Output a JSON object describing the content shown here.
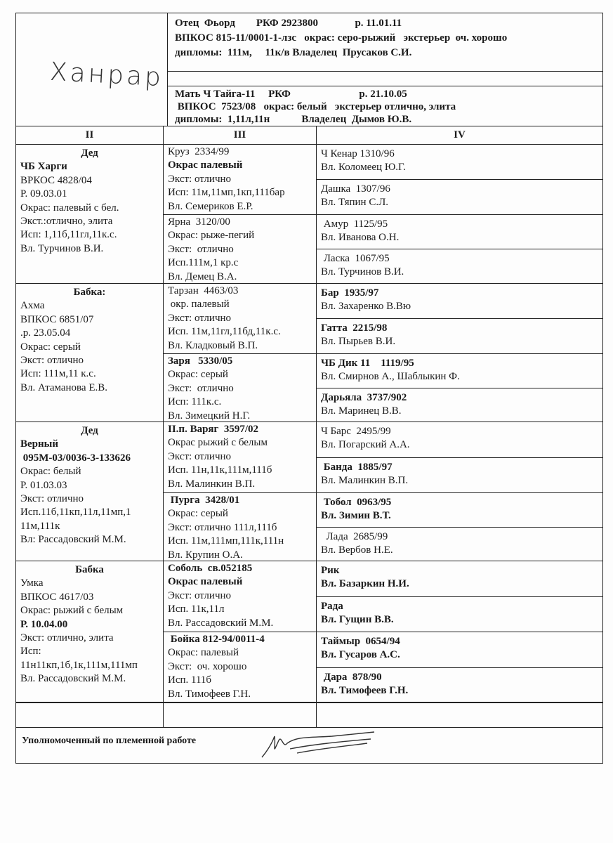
{
  "handwritten_name": "Ханрар",
  "father": {
    "lines": [
      "Отец  Фьорд        РКФ 2923800              р. 11.01.11",
      "ВПКОС 815-11/0001-1-лзс   окрас: серо-рыжий   экстерьер  оч. хорошо",
      "дипломы:  111м,     11к/в Владелец  Прусаков С.И."
    ]
  },
  "mother": {
    "lines": [
      "Мать Ч Тайга-11     РКФ                          р. 21.10.05",
      " ВПКОС  7523/08   окрас: белый   экстерьер отлично, элита",
      "дипломы:  1,11л,11н            Владелец  Дымов Ю.В."
    ]
  },
  "columns": [
    "II",
    "III",
    "IV"
  ],
  "col2": [
    [
      {
        "t": "Дед",
        "b": true,
        "c": true
      },
      {
        "t": "ЧБ Харги",
        "b": true
      },
      {
        "t": "ВРКОС 4828/04"
      },
      {
        "t": "Р. 09.03.01"
      },
      {
        "t": "Окрас: палевый с бел."
      },
      {
        "t": "Экст.:отлично, элита"
      },
      {
        "t": "Исп: 1,11б,11гл,11к.с."
      },
      {
        "t": "Вл. Турчинов В.И."
      }
    ],
    [
      {
        "t": ""
      },
      {
        "t": "Бабка:",
        "b": true,
        "c": true
      },
      {
        "t": "Ахма"
      },
      {
        "t": "ВПКОС 6851/07"
      },
      {
        "t": ".р. 23.05.04"
      },
      {
        "t": "Окрас: серый"
      },
      {
        "t": "Экст: отлично"
      },
      {
        "t": "Исп: 111м,11 к.с."
      },
      {
        "t": "Вл. Атаманова Е.В."
      }
    ],
    [
      {
        "t": "Дед",
        "b": true,
        "c": true
      },
      {
        "t": "Верный",
        "b": true
      },
      {
        "t": " 095М-03/0036-3-133626",
        "b": true
      },
      {
        "t": "Окрас: белый"
      },
      {
        "t": "Р. 01.03.03"
      },
      {
        "t": "Экст: отлично"
      },
      {
        "t": "Исп.11б,11кп,11л,11мп,1"
      },
      {
        "t": "11м,111к"
      },
      {
        "t": "Вл: Рассадовский М.М."
      }
    ],
    [
      {
        "t": ""
      },
      {
        "t": "Бабка",
        "b": true,
        "c": true
      },
      {
        "t": "Умка"
      },
      {
        "t": "ВПКОС 4617/03"
      },
      {
        "t": "Окрас: рыжий с белым"
      },
      {
        "t": "Р. 10.04.00",
        "b": true
      },
      {
        "t": "Экст: отлично, элита"
      },
      {
        "t": "Исп:"
      },
      {
        "t": "11н11кп,1б,1к,111м,111мп"
      },
      {
        "t": "Вл. Рассадовский М.М."
      }
    ]
  ],
  "col3": [
    [
      {
        "t": "Круз  2334/99"
      },
      {
        "t": "Окрас палевый",
        "b": true
      },
      {
        "t": "Экст: отлично"
      },
      {
        "t": "Исп: 11м,11мп,1кп,111бар"
      },
      {
        "t": "Вл. Семериков Е.Р."
      }
    ],
    [
      {
        "t": "Ярна  3120/00"
      },
      {
        "t": "Окрас: рыже-пегий"
      },
      {
        "t": "Экст:  отлично"
      },
      {
        "t": "Исп.111м,1 кр.с"
      },
      {
        "t": "Вл. Демец В.А."
      }
    ],
    [
      {
        "t": "Тарзан  4463/03"
      },
      {
        "t": " окр. палевый"
      },
      {
        "t": "Экст: отлично"
      },
      {
        "t": "Исп. 11м,11гл,11бд,11к.с."
      },
      {
        "t": "Вл. Кладковый В.П."
      }
    ],
    [
      {
        "t": "Заря   5330/05",
        "b": true
      },
      {
        "t": "Окрас: серый"
      },
      {
        "t": "Экст:  отлично"
      },
      {
        "t": "Исп: 111к.с."
      },
      {
        "t": "Вл. Зимецкий Н.Г."
      }
    ],
    [
      {
        "t": "II.п. Варяг  3597/02",
        "b": true
      },
      {
        "t": "Окрас рыжий с белым"
      },
      {
        "t": "Экст: отлично"
      },
      {
        "t": "Исп. 11н,11к,111м,111б"
      },
      {
        "t": "Вл. Малинкин В.П."
      }
    ],
    [
      {
        "t": " Пурга  3428/01",
        "b": true
      },
      {
        "t": "Окрас: серый"
      },
      {
        "t": "Экст: отлично 111л,111б"
      },
      {
        "t": "Исп. 11м,111мп,111к,111н"
      },
      {
        "t": "Вл. Крупин О.А."
      }
    ],
    [
      {
        "t": "Соболь  св.052185",
        "b": true
      },
      {
        "t": "Окрас палевый",
        "b": true
      },
      {
        "t": "Экст: отлично"
      },
      {
        "t": "Исп. 11к,11л"
      },
      {
        "t": "Вл. Рассадовский М.М."
      }
    ],
    [
      {
        "t": " Бойка 812-94/0011-4",
        "b": true
      },
      {
        "t": "Окрас: палевый"
      },
      {
        "t": "Экст:  оч. хорошо"
      },
      {
        "t": "Исп. 111б"
      },
      {
        "t": "Вл. Тимофеев Г.Н."
      }
    ]
  ],
  "col4": [
    [
      {
        "t": "Ч Кенар 1310/96"
      },
      {
        "t": "Вл. Коломеец Ю.Г."
      }
    ],
    [
      {
        "t": "Дашка  1307/96"
      },
      {
        "t": "Вл. Тяпин С.Л."
      }
    ],
    [
      {
        "t": " Амур  1125/95"
      },
      {
        "t": "Вл. Иванова О.Н."
      }
    ],
    [
      {
        "t": " Ласка  1067/95"
      },
      {
        "t": "Вл. Турчинов В.И."
      }
    ],
    [
      {
        "t": "Бар  1935/97",
        "b": true
      },
      {
        "t": "Вл. Захаренко В.Вю"
      }
    ],
    [
      {
        "t": "Гатта  2215/98",
        "b": true
      },
      {
        "t": "Вл. Пырьев В.И."
      }
    ],
    [
      {
        "t": "ЧБ Дик 11    1119/95",
        "b": true
      },
      {
        "t": "Вл. Смирнов А., Шаблыкин Ф."
      }
    ],
    [
      {
        "t": "Дарьяла  3737/902",
        "b": true
      },
      {
        "t": "Вл. Маринец В.В."
      }
    ],
    [
      {
        "t": "Ч Барс  2495/99"
      },
      {
        "t": "Вл. Погарский А.А."
      }
    ],
    [
      {
        "t": " Банда  1885/97",
        "b": true
      },
      {
        "t": "Вл. Малинкин В.П."
      }
    ],
    [
      {
        "t": " Тобол  0963/95",
        "b": true
      },
      {
        "t": "Вл. Зимин В.Т.",
        "b": true
      }
    ],
    [
      {
        "t": "  Лада  2685/99"
      },
      {
        "t": "Вл. Вербов Н.Е."
      }
    ],
    [
      {
        "t": "Рик",
        "b": true
      },
      {
        "t": "Вл. Базаркин Н.И.",
        "b": true
      }
    ],
    [
      {
        "t": "Рада",
        "b": true
      },
      {
        "t": "Вл. Гущин В.В.",
        "b": true
      }
    ],
    [
      {
        "t": "Таймыр  0654/94",
        "b": true
      },
      {
        "t": "Вл. Гусаров А.С.",
        "b": true
      }
    ],
    [
      {
        "t": " Дара  878/90",
        "b": true
      },
      {
        "t": "Вл. Тимофеев Г.Н.",
        "b": true
      }
    ]
  ],
  "footer": {
    "authorized_label": "Уполномоченный по племенной работе"
  }
}
